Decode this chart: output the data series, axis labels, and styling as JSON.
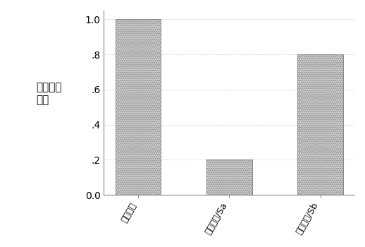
{
  "categories": [
    "分子信标",
    "分子信标/Sa",
    "分子信标/Sb"
  ],
  "values": [
    1.0,
    0.2,
    0.8
  ],
  "bar_color": "#d0d0d0",
  "bar_hatch": "......",
  "ylabel_line1": "相对荧光",
  "ylabel_line2": "变化",
  "ylim": [
    0,
    1.05
  ],
  "yticks": [
    0.0,
    0.2,
    0.4,
    0.6,
    0.8,
    1.0
  ],
  "ytick_labels": [
    "0.0",
    ".2",
    ".4",
    ".6",
    ".8",
    "1.0"
  ],
  "background_color": "#ffffff",
  "plot_bg_color": "#ffffff",
  "bar_edge_color": "#888888",
  "ylabel_fontsize": 11,
  "tick_fontsize": 10,
  "xlabel_fontsize": 9,
  "bar_width": 0.5,
  "spine_color": "#888888"
}
